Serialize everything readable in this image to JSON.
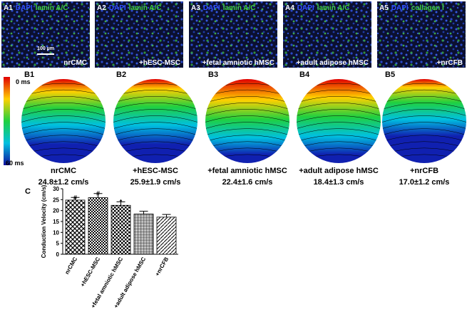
{
  "panels_a": [
    {
      "label": "A1",
      "stain1": "DAPI",
      "stain2": "lamin A/C",
      "caption": "nrCMC",
      "scale": "100 µm"
    },
    {
      "label": "A2",
      "stain1": "DAPI",
      "stain2": "lamin A/C",
      "caption": "+hESC-MSC"
    },
    {
      "label": "A3",
      "stain1": "DAPI",
      "stain2": "lamin A/C",
      "caption": "+fetal amniotic hMSC"
    },
    {
      "label": "A4",
      "stain1": "DAPI",
      "stain2": "lamin A/C",
      "caption": "+adult adipose hMSC"
    },
    {
      "label": "A5",
      "stain1": "DAPI",
      "stain2": "collagen I",
      "caption": "+nrCFB"
    }
  ],
  "colorbar": {
    "top": "0 ms",
    "bottom": "60 ms"
  },
  "panels_b": [
    {
      "label": "B1",
      "name": "nrCMC",
      "velocity": "24.8±1.2 cm/s"
    },
    {
      "label": "B2",
      "name": "+hESC-MSC",
      "velocity": "25.9±1.9 cm/s"
    },
    {
      "label": "B3",
      "name": "+fetal amniotic hMSC",
      "velocity": "22.4±1.6 cm/s"
    },
    {
      "label": "B4",
      "name": "+adult adipose hMSC",
      "velocity": "18.4±1.3 cm/s"
    },
    {
      "label": "B5",
      "name": "+nrCFB",
      "velocity": "17.0±1.2 cm/s"
    }
  ],
  "chart_data": {
    "type": "bar",
    "panel_label": "C",
    "y_label": "Conduction Velocity (cm/s)",
    "categories": [
      "nrCMC",
      "+hESC-MSC",
      "+fetal amniotic hMSC",
      "+adult adipose hMSC",
      "+nrCFB"
    ],
    "values": [
      24.8,
      25.9,
      22.4,
      18.4,
      17.0
    ],
    "errors": [
      1.2,
      1.9,
      1.6,
      1.3,
      1.2
    ],
    "annotations": [
      "#",
      "#",
      "*",
      null,
      null
    ],
    "ylim": [
      0,
      30
    ],
    "yticks": [
      0,
      5,
      10,
      15,
      20,
      25,
      30
    ],
    "color": "#000000"
  }
}
